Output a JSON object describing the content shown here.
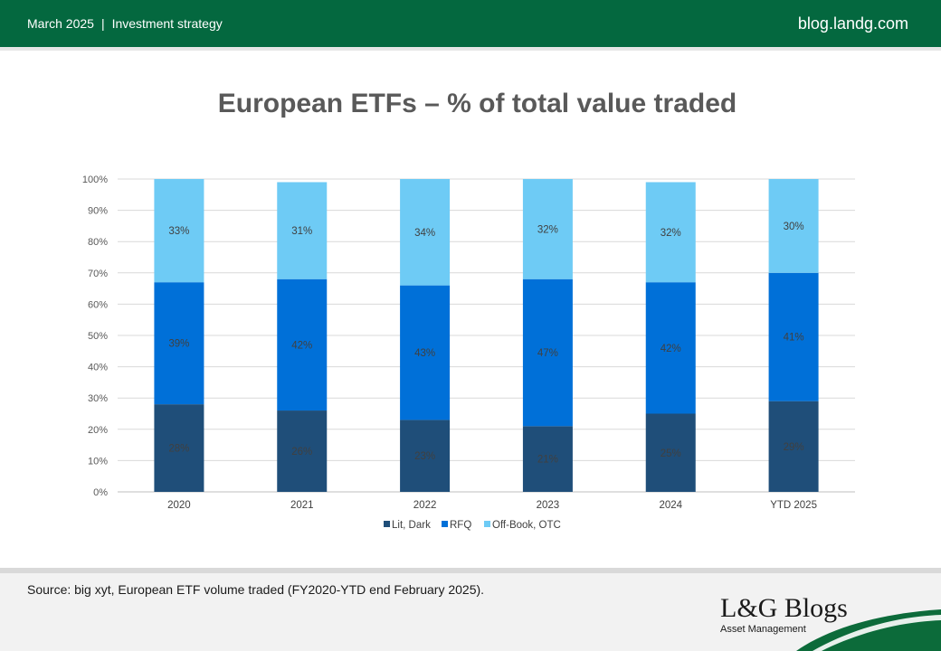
{
  "header": {
    "date": "March 2025",
    "separator": "|",
    "section": "Investment strategy",
    "site": "blog.landg.com"
  },
  "chart_data": {
    "type": "bar",
    "stacked": true,
    "title": "European ETFs – % of total value traded",
    "categories": [
      "2020",
      "2021",
      "2022",
      "2023",
      "2024",
      "YTD 2025"
    ],
    "series": [
      {
        "name": "Lit, Dark",
        "color": "#1f4e79",
        "values": [
          28,
          26,
          23,
          21,
          25,
          29
        ],
        "labels": [
          "28%",
          "26%",
          "23%",
          "21%",
          "25%",
          "29%"
        ]
      },
      {
        "name": "RFQ",
        "color": "#0070d8",
        "values": [
          39,
          42,
          43,
          47,
          42,
          41
        ],
        "labels": [
          "39%",
          "42%",
          "43%",
          "47%",
          "42%",
          "41%"
        ]
      },
      {
        "name": "Off-Book, OTC",
        "color": "#6ecbf5",
        "values": [
          33,
          31,
          34,
          32,
          32,
          30
        ],
        "labels": [
          "33%",
          "31%",
          "34%",
          "32%",
          "32%",
          "30%"
        ]
      }
    ],
    "yticks": [
      "0%",
      "10%",
      "20%",
      "30%",
      "40%",
      "50%",
      "60%",
      "70%",
      "80%",
      "90%",
      "100%"
    ],
    "ylim": [
      0,
      100
    ],
    "grid": true,
    "legend": "bottom"
  },
  "footer": {
    "source": "Source: big xyt, European ETF volume traded (FY2020-YTD end February 2025).",
    "brand_name": "L&G Blogs",
    "brand_sub": "Asset Management"
  }
}
